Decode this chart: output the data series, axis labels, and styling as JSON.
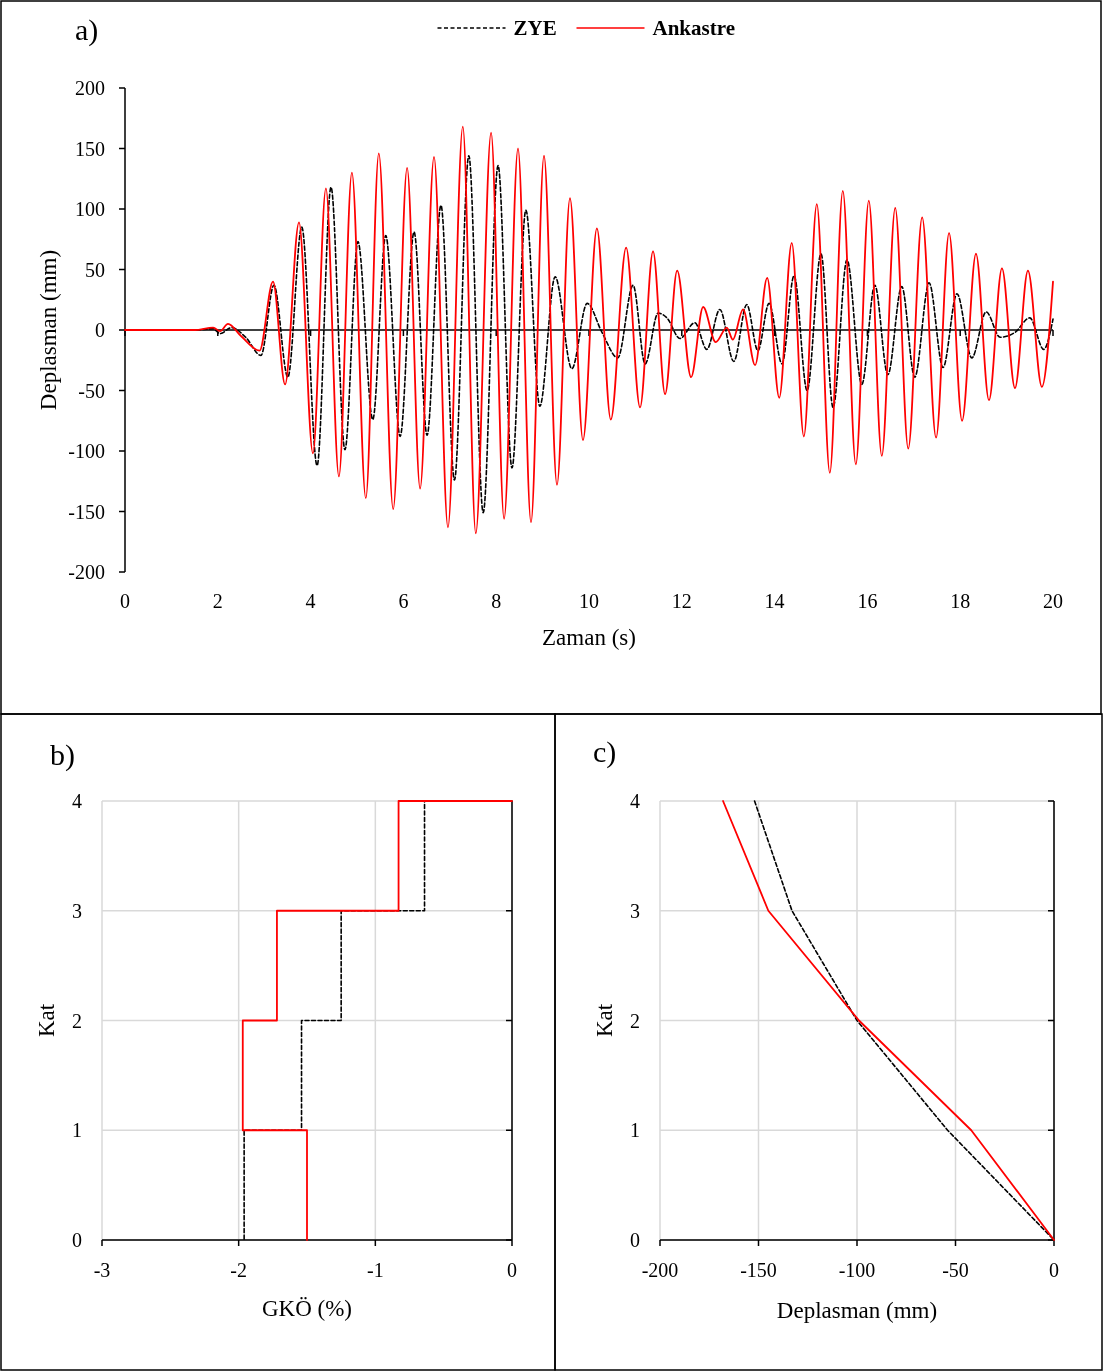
{
  "chart_data": [
    {
      "type": "line",
      "title": "a)",
      "xlabel": "Zaman (s)",
      "ylabel": "Deplasman (mm)",
      "xlim": [
        0,
        20
      ],
      "xticks": [
        0,
        2,
        4,
        6,
        8,
        10,
        12,
        14,
        16,
        18,
        20
      ],
      "ylim": [
        -200,
        200
      ],
      "yticks": [
        -200,
        -150,
        -100,
        -50,
        0,
        50,
        100,
        150,
        200
      ],
      "grid": false,
      "legend": "top",
      "ref_lines": [
        {
          "axis": "y",
          "value": 0,
          "color": "#000000"
        }
      ],
      "series": [
        {
          "name": "ZYE",
          "color": "#000000",
          "line_style": "dashed",
          "x": [
            0,
            1.5,
            1.9,
            2.05,
            2.3,
            2.6,
            2.93,
            3.21,
            3.51,
            3.81,
            4.14,
            4.44,
            4.74,
            5.02,
            5.34,
            5.62,
            5.93,
            6.23,
            6.51,
            6.81,
            7.1,
            7.41,
            7.72,
            8.04,
            8.34,
            8.64,
            8.94,
            9.27,
            9.63,
            9.96,
            10.28,
            10.62,
            10.95,
            11.21,
            11.49,
            11.68,
            11.96,
            12.28,
            12.54,
            12.82,
            13.12,
            13.4,
            13.64,
            13.88,
            14.16,
            14.42,
            14.7,
            15.0,
            15.26,
            15.56,
            15.88,
            16.16,
            16.44,
            16.74,
            17.02,
            17.33,
            17.63,
            17.93,
            18.25,
            18.56,
            18.86,
            19.18,
            19.5,
            19.8,
            20
          ],
          "values": [
            0,
            0,
            1,
            -3,
            2,
            -6,
            -21,
            37,
            -39,
            85,
            -112,
            118,
            -99,
            73,
            -74,
            78,
            -88,
            81,
            -87,
            103,
            -124,
            144,
            -151,
            136,
            -114,
            99,
            -63,
            44,
            -32,
            22,
            -2,
            -23,
            37,
            -28,
            14,
            10,
            -7,
            6,
            -16,
            17,
            -26,
            21,
            -17,
            22,
            -28,
            45,
            -50,
            63,
            -64,
            58,
            -45,
            37,
            -37,
            36,
            -39,
            39,
            -31,
            30,
            -23,
            15,
            -6,
            -2,
            10,
            -16,
            9
          ]
        },
        {
          "name": "Ankastre",
          "color": "#ff0000",
          "line_style": "solid",
          "x": [
            0,
            1.5,
            1.9,
            2.05,
            2.22,
            2.5,
            2.9,
            3.19,
            3.45,
            3.75,
            4.05,
            4.33,
            4.61,
            4.89,
            5.19,
            5.47,
            5.78,
            6.08,
            6.36,
            6.66,
            6.96,
            7.28,
            7.56,
            7.89,
            8.17,
            8.47,
            8.75,
            9.03,
            9.31,
            9.59,
            9.87,
            10.17,
            10.47,
            10.8,
            11.1,
            11.38,
            11.64,
            11.9,
            12.2,
            12.46,
            12.73,
            12.97,
            13.1,
            13.32,
            13.58,
            13.84,
            14.1,
            14.37,
            14.63,
            14.91,
            15.19,
            15.47,
            15.75,
            16.03,
            16.31,
            16.6,
            16.88,
            17.18,
            17.48,
            17.76,
            18.04,
            18.34,
            18.62,
            18.9,
            19.18,
            19.46,
            19.76,
            20
          ],
          "values": [
            0,
            0,
            2,
            -1,
            5,
            -5,
            -17,
            40,
            -45,
            89,
            -102,
            117,
            -121,
            130,
            -139,
            146,
            -148,
            134,
            -131,
            143,
            -163,
            168,
            -168,
            163,
            -156,
            150,
            -159,
            144,
            -128,
            109,
            -91,
            84,
            -74,
            68,
            -64,
            65,
            -53,
            49,
            -39,
            19,
            -10,
            2,
            -8,
            17,
            -29,
            43,
            -56,
            72,
            -88,
            104,
            -118,
            115,
            -111,
            107,
            -104,
            101,
            -98,
            93,
            -89,
            80,
            -75,
            63,
            -58,
            51,
            -48,
            49,
            -47,
            40
          ]
        }
      ]
    },
    {
      "type": "line",
      "title": "b)",
      "xlabel": "GKÖ (%)",
      "ylabel": "Kat",
      "xlim": [
        -3,
        0
      ],
      "xticks": [
        -3,
        -2,
        -1,
        0
      ],
      "ylim": [
        0,
        4
      ],
      "yticks": [
        0,
        1,
        2,
        3,
        4
      ],
      "grid": true,
      "legend": false,
      "series": [
        {
          "color": "#000000",
          "line_style": "dashed",
          "x": [
            0,
            -0.64,
            -0.64,
            -1.25,
            -1.25,
            -1.54,
            -1.54,
            -1.96,
            -1.96
          ],
          "values": [
            4,
            4,
            3,
            3,
            2,
            2,
            1,
            1,
            0
          ]
        },
        {
          "color": "#ff0000",
          "line_style": "solid",
          "x": [
            0,
            -0.83,
            -0.83,
            -1.72,
            -1.72,
            -1.97,
            -1.97,
            -1.5,
            -1.5
          ],
          "values": [
            4,
            4,
            3,
            3,
            2,
            2,
            1,
            1,
            0
          ]
        }
      ]
    },
    {
      "type": "line",
      "title": "c)",
      "xlabel": "Deplasman (mm)",
      "ylabel": "Kat",
      "xlim": [
        -200,
        0
      ],
      "xticks": [
        -200,
        -150,
        -100,
        -50,
        0
      ],
      "ylim": [
        0,
        4
      ],
      "yticks": [
        0,
        1,
        2,
        3,
        4
      ],
      "grid": true,
      "legend": false,
      "series": [
        {
          "color": "#000000",
          "line_style": "dashed",
          "x": [
            -152,
            -133,
            -100,
            -54,
            0
          ],
          "values": [
            4,
            3,
            2,
            1,
            0
          ]
        },
        {
          "color": "#ff0000",
          "line_style": "solid",
          "x": [
            -168,
            -145,
            -99,
            -42,
            0
          ],
          "values": [
            4,
            3,
            2,
            1,
            0
          ]
        }
      ]
    }
  ]
}
